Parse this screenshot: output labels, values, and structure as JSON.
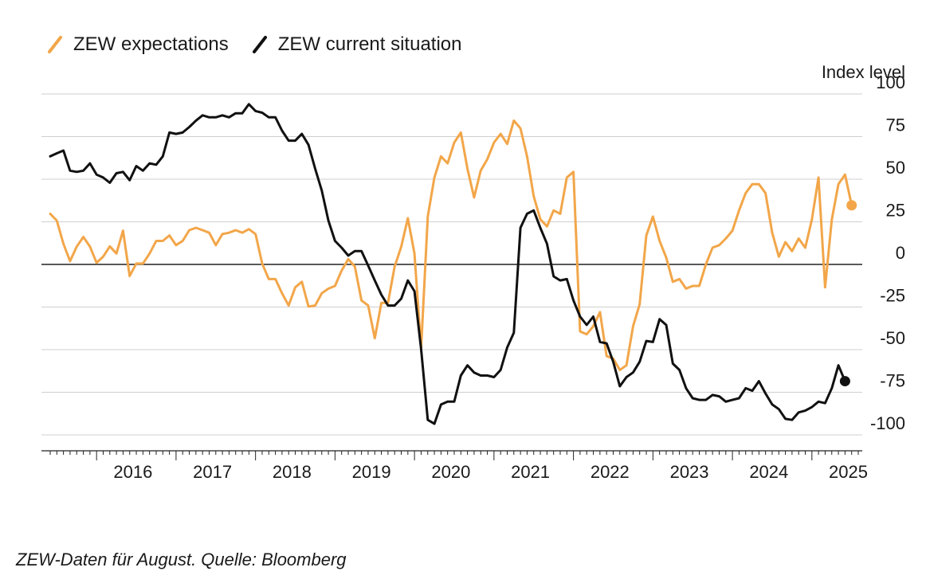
{
  "chart_data": {
    "type": "line",
    "ylabel": "Index level",
    "ylim": [
      -100,
      100
    ],
    "y_ticks": [
      "100",
      "75",
      "50",
      "25",
      "0",
      "-25",
      "-50",
      "-75",
      "-100"
    ],
    "x_ticks": [
      "2016",
      "2017",
      "2018",
      "2019",
      "2020",
      "2021",
      "2022",
      "2023",
      "2024",
      "2025"
    ],
    "x_range": [
      "2015-06",
      "2025-08"
    ],
    "legend_position": "top-left",
    "grid": "horizontal",
    "series": [
      {
        "name": "ZEW expectations",
        "color": "#F2A649",
        "end_marker": true,
        "points": [
          [
            "2015-06",
            29.7
          ],
          [
            "2015-07",
            25.7
          ],
          [
            "2015-08",
            12.1
          ],
          [
            "2015-09",
            1.9
          ],
          [
            "2015-10",
            10.4
          ],
          [
            "2015-11",
            16.1
          ],
          [
            "2015-12",
            10.4
          ],
          [
            "2016-01",
            1.0
          ],
          [
            "2016-02",
            4.6
          ],
          [
            "2016-03",
            10.6
          ],
          [
            "2016-04",
            6.4
          ],
          [
            "2016-05",
            19.8
          ],
          [
            "2016-06",
            -6.8
          ],
          [
            "2016-07",
            0.5
          ],
          [
            "2016-08",
            0.5
          ],
          [
            "2016-09",
            6.4
          ],
          [
            "2016-10",
            13.8
          ],
          [
            "2016-11",
            13.8
          ],
          [
            "2016-12",
            17.0
          ],
          [
            "2017-01",
            11.3
          ],
          [
            "2017-02",
            13.8
          ],
          [
            "2017-03",
            20.1
          ],
          [
            "2017-04",
            21.5
          ],
          [
            "2017-05",
            20.1
          ],
          [
            "2017-06",
            18.6
          ],
          [
            "2017-07",
            11.3
          ],
          [
            "2017-08",
            17.8
          ],
          [
            "2017-09",
            18.6
          ],
          [
            "2017-10",
            20.1
          ],
          [
            "2017-11",
            18.6
          ],
          [
            "2017-12",
            20.7
          ],
          [
            "2018-01",
            17.8
          ],
          [
            "2018-02",
            0.5
          ],
          [
            "2018-03",
            -8.6
          ],
          [
            "2018-04",
            -8.6
          ],
          [
            "2018-05",
            -16.9
          ],
          [
            "2018-06",
            -24.1
          ],
          [
            "2018-07",
            -13.4
          ],
          [
            "2018-08",
            -10.2
          ],
          [
            "2018-09",
            -24.7
          ],
          [
            "2018-10",
            -24.1
          ],
          [
            "2018-11",
            -16.9
          ],
          [
            "2018-12",
            -14.2
          ],
          [
            "2019-01",
            -12.6
          ],
          [
            "2019-02",
            -3.6
          ],
          [
            "2019-03",
            3.1
          ],
          [
            "2019-04",
            -1.3
          ],
          [
            "2019-05",
            -21.1
          ],
          [
            "2019-06",
            -24.1
          ],
          [
            "2019-07",
            -43.3
          ],
          [
            "2019-08",
            -22.5
          ],
          [
            "2019-09",
            -22.5
          ],
          [
            "2019-10",
            -1.3
          ],
          [
            "2019-11",
            10.4
          ],
          [
            "2019-12",
            27.1
          ],
          [
            "2020-01",
            6.4
          ],
          [
            "2020-02",
            -49.5
          ],
          [
            "2020-03",
            28.1
          ],
          [
            "2020-04",
            51.0
          ],
          [
            "2020-05",
            63.4
          ],
          [
            "2020-06",
            59.3
          ],
          [
            "2020-07",
            71.5
          ],
          [
            "2020-08",
            77.4
          ],
          [
            "2020-09",
            56.1
          ],
          [
            "2020-10",
            39.3
          ],
          [
            "2020-11",
            55.0
          ],
          [
            "2020-12",
            61.8
          ],
          [
            "2021-01",
            71.5
          ],
          [
            "2021-02",
            76.6
          ],
          [
            "2021-03",
            70.7
          ],
          [
            "2021-04",
            84.4
          ],
          [
            "2021-05",
            79.8
          ],
          [
            "2021-06",
            63.4
          ],
          [
            "2021-07",
            40.1
          ],
          [
            "2021-08",
            26.5
          ],
          [
            "2021-09",
            22.3
          ],
          [
            "2021-10",
            31.7
          ],
          [
            "2021-11",
            29.7
          ],
          [
            "2021-12",
            51.0
          ],
          [
            "2022-01",
            54.3
          ],
          [
            "2022-02",
            -39.3
          ],
          [
            "2022-03",
            -41.0
          ],
          [
            "2022-04",
            -36.3
          ],
          [
            "2022-05",
            -28.0
          ],
          [
            "2022-06",
            -53.8
          ],
          [
            "2022-07",
            -55.3
          ],
          [
            "2022-08",
            -61.9
          ],
          [
            "2022-09",
            -59.2
          ],
          [
            "2022-10",
            -36.3
          ],
          [
            "2022-11",
            -23.3
          ],
          [
            "2022-12",
            16.9
          ],
          [
            "2023-01",
            28.1
          ],
          [
            "2023-02",
            13.8
          ],
          [
            "2023-03",
            4.0
          ],
          [
            "2023-04",
            -10.2
          ],
          [
            "2023-05",
            -8.6
          ],
          [
            "2023-06",
            -14.2
          ],
          [
            "2023-07",
            -12.6
          ],
          [
            "2023-08",
            -12.6
          ],
          [
            "2023-09",
            0.0
          ],
          [
            "2023-10",
            9.8
          ],
          [
            "2023-11",
            11.3
          ],
          [
            "2023-12",
            15.2
          ],
          [
            "2024-01",
            19.8
          ],
          [
            "2024-02",
            31.7
          ],
          [
            "2024-03",
            41.8
          ],
          [
            "2024-04",
            47.1
          ],
          [
            "2024-05",
            47.1
          ],
          [
            "2024-06",
            41.8
          ],
          [
            "2024-07",
            18.6
          ],
          [
            "2024-08",
            4.6
          ],
          [
            "2024-09",
            13.1
          ],
          [
            "2024-10",
            7.8
          ],
          [
            "2024-11",
            15.2
          ],
          [
            "2024-12",
            9.8
          ],
          [
            "2025-01",
            26.3
          ],
          [
            "2025-02",
            51.0
          ],
          [
            "2025-03",
            -13.4
          ],
          [
            "2025-04",
            26.3
          ],
          [
            "2025-05",
            47.1
          ],
          [
            "2025-06",
            52.7
          ],
          [
            "2025-07",
            34.7
          ]
        ]
      },
      {
        "name": "ZEW current situation",
        "color": "#111111",
        "end_marker": true,
        "points": [
          [
            "2015-06",
            63.4
          ],
          [
            "2015-07",
            65.2
          ],
          [
            "2015-08",
            66.8
          ],
          [
            "2015-09",
            55.0
          ],
          [
            "2015-10",
            54.3
          ],
          [
            "2015-11",
            55.0
          ],
          [
            "2015-12",
            59.3
          ],
          [
            "2016-01",
            52.7
          ],
          [
            "2016-02",
            51.0
          ],
          [
            "2016-03",
            47.9
          ],
          [
            "2016-04",
            53.5
          ],
          [
            "2016-05",
            54.3
          ],
          [
            "2016-06",
            49.4
          ],
          [
            "2016-07",
            57.7
          ],
          [
            "2016-08",
            55.0
          ],
          [
            "2016-09",
            59.3
          ],
          [
            "2016-10",
            58.5
          ],
          [
            "2016-11",
            63.4
          ],
          [
            "2016-12",
            77.4
          ],
          [
            "2017-01",
            76.6
          ],
          [
            "2017-02",
            77.4
          ],
          [
            "2017-03",
            80.6
          ],
          [
            "2017-04",
            84.4
          ],
          [
            "2017-05",
            87.5
          ],
          [
            "2017-06",
            86.3
          ],
          [
            "2017-07",
            86.3
          ],
          [
            "2017-08",
            87.5
          ],
          [
            "2017-09",
            86.3
          ],
          [
            "2017-10",
            88.7
          ],
          [
            "2017-11",
            88.7
          ],
          [
            "2017-12",
            94.0
          ],
          [
            "2018-01",
            90.0
          ],
          [
            "2018-02",
            89.0
          ],
          [
            "2018-03",
            86.3
          ],
          [
            "2018-04",
            86.3
          ],
          [
            "2018-05",
            78.5
          ],
          [
            "2018-06",
            72.6
          ],
          [
            "2018-07",
            72.6
          ],
          [
            "2018-08",
            76.6
          ],
          [
            "2018-09",
            70.2
          ],
          [
            "2018-10",
            56.1
          ],
          [
            "2018-11",
            43.3
          ],
          [
            "2018-12",
            25.7
          ],
          [
            "2019-01",
            13.8
          ],
          [
            "2019-02",
            9.8
          ],
          [
            "2019-03",
            5.2
          ],
          [
            "2019-04",
            7.8
          ],
          [
            "2019-05",
            7.8
          ],
          [
            "2019-06",
            -0.7
          ],
          [
            "2019-07",
            -9.4
          ],
          [
            "2019-08",
            -17.8
          ],
          [
            "2019-09",
            -24.1
          ],
          [
            "2019-10",
            -24.1
          ],
          [
            "2019-11",
            -20.1
          ],
          [
            "2019-12",
            -9.4
          ],
          [
            "2020-01",
            -15.7
          ],
          [
            "2020-02",
            -49.5
          ],
          [
            "2020-03",
            -91.2
          ],
          [
            "2020-04",
            -93.5
          ],
          [
            "2020-05",
            -82.2
          ],
          [
            "2020-06",
            -80.5
          ],
          [
            "2020-07",
            -80.5
          ],
          [
            "2020-08",
            -65.2
          ],
          [
            "2020-09",
            -59.2
          ],
          [
            "2020-10",
            -63.4
          ],
          [
            "2020-11",
            -65.2
          ],
          [
            "2020-12",
            -65.2
          ],
          [
            "2021-01",
            -66.1
          ],
          [
            "2021-02",
            -61.9
          ],
          [
            "2021-03",
            -48.7
          ],
          [
            "2021-04",
            -40.1
          ],
          [
            "2021-05",
            21.5
          ],
          [
            "2021-06",
            29.7
          ],
          [
            "2021-07",
            31.7
          ],
          [
            "2021-08",
            21.5
          ],
          [
            "2021-09",
            12.1
          ],
          [
            "2021-10",
            -7.0
          ],
          [
            "2021-11",
            -9.4
          ],
          [
            "2021-12",
            -8.6
          ],
          [
            "2022-01",
            -21.1
          ],
          [
            "2022-02",
            -30.6
          ],
          [
            "2022-03",
            -35.5
          ],
          [
            "2022-04",
            -30.6
          ],
          [
            "2022-05",
            -45.5
          ],
          [
            "2022-06",
            -46.3
          ],
          [
            "2022-07",
            -57.1
          ],
          [
            "2022-08",
            -71.5
          ],
          [
            "2022-09",
            -66.1
          ],
          [
            "2022-10",
            -63.4
          ],
          [
            "2022-11",
            -57.1
          ],
          [
            "2022-12",
            -44.9
          ],
          [
            "2023-01",
            -45.5
          ],
          [
            "2023-02",
            -32.1
          ],
          [
            "2023-03",
            -35.5
          ],
          [
            "2023-04",
            -58.2
          ],
          [
            "2023-05",
            -61.9
          ],
          [
            "2023-06",
            -72.6
          ],
          [
            "2023-07",
            -78.5
          ],
          [
            "2023-08",
            -79.5
          ],
          [
            "2023-09",
            -79.5
          ],
          [
            "2023-10",
            -76.6
          ],
          [
            "2023-11",
            -77.4
          ],
          [
            "2023-12",
            -80.5
          ],
          [
            "2024-01",
            -79.5
          ],
          [
            "2024-02",
            -78.5
          ],
          [
            "2024-03",
            -72.6
          ],
          [
            "2024-04",
            -74.1
          ],
          [
            "2024-05",
            -68.5
          ],
          [
            "2024-06",
            -75.7
          ],
          [
            "2024-07",
            -82.2
          ],
          [
            "2024-08",
            -84.9
          ],
          [
            "2024-09",
            -90.6
          ],
          [
            "2024-10",
            -91.2
          ],
          [
            "2024-11",
            -86.8
          ],
          [
            "2024-12",
            -85.8
          ],
          [
            "2025-01",
            -83.7
          ],
          [
            "2025-02",
            -80.5
          ],
          [
            "2025-03",
            -81.4
          ],
          [
            "2025-04",
            -72.6
          ],
          [
            "2025-05",
            -59.2
          ],
          [
            "2025-06",
            -68.5
          ]
        ]
      }
    ]
  },
  "footer": {
    "note": "ZEW-Daten für August. Quelle: Bloomberg"
  }
}
